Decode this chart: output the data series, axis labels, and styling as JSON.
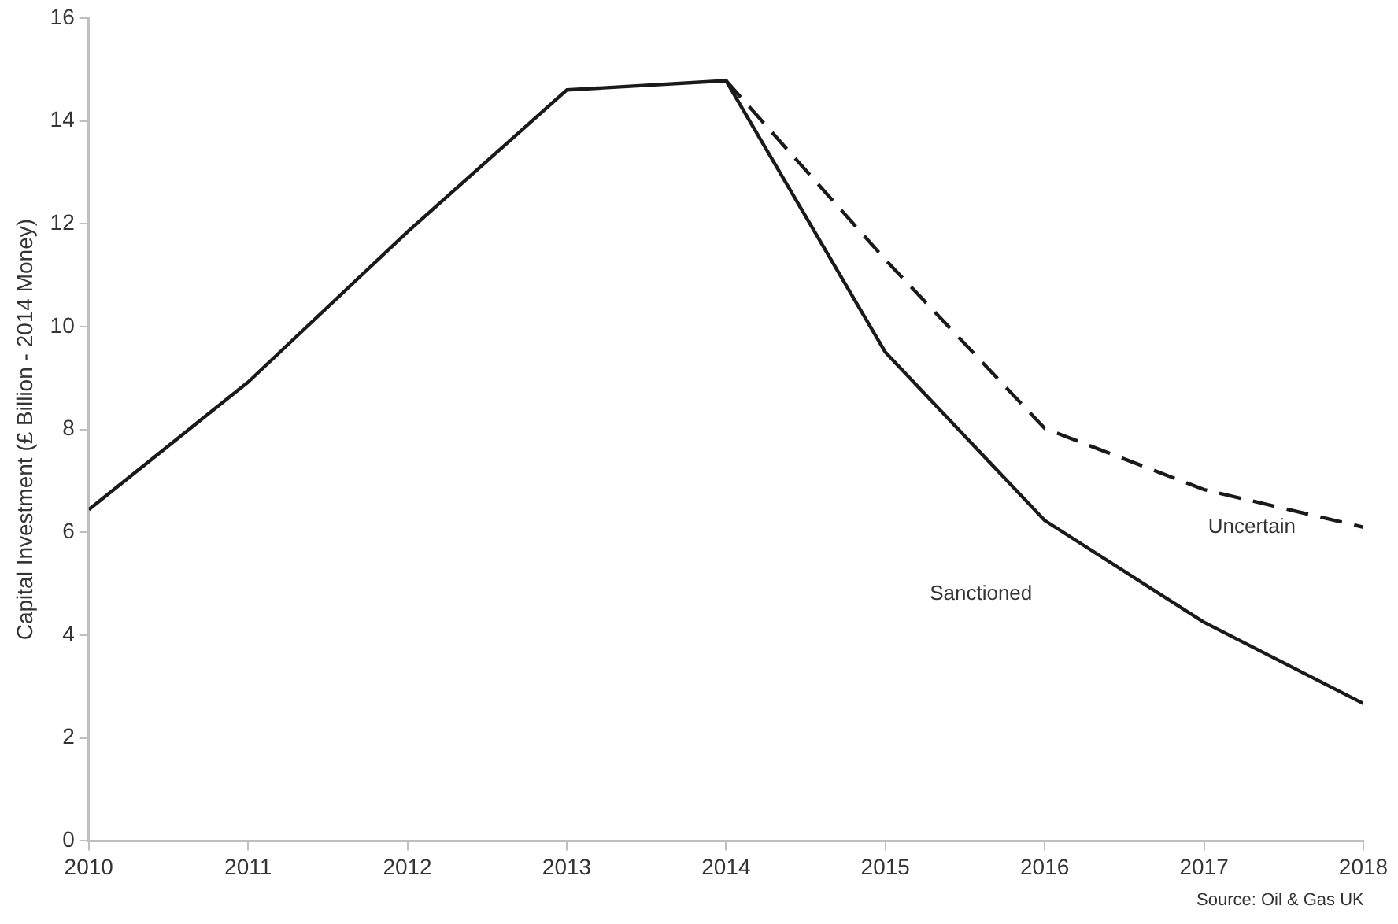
{
  "chart_data": {
    "type": "line",
    "ylabel": "Capital Investment (£ Billion - 2014 Money)",
    "x": [
      2010,
      2011,
      2012,
      2013,
      2014,
      2015,
      2016,
      2017,
      2018
    ],
    "series": [
      {
        "name": "Sanctioned",
        "color": "#1a1a1a",
        "line_style": "solid",
        "values": [
          6.44,
          8.92,
          11.84,
          14.6,
          14.78,
          9.5,
          6.23,
          4.25,
          2.67
        ]
      },
      {
        "name": "Uncertain",
        "color": "#1a1a1a",
        "line_style": "dashed",
        "values": [
          null,
          null,
          null,
          null,
          14.78,
          11.3,
          8.02,
          6.83,
          6.1
        ]
      }
    ],
    "xlim": [
      2010,
      2018
    ],
    "xticks": [
      2010,
      2011,
      2012,
      2013,
      2014,
      2015,
      2016,
      2017,
      2018
    ],
    "ylim": [
      0,
      16
    ],
    "yticks": [
      0,
      2,
      4,
      6,
      8,
      10,
      12,
      14,
      16
    ],
    "grid": false,
    "legend": false,
    "marker": "none",
    "annotations": [
      "Source: Oil & Gas UK"
    ]
  }
}
